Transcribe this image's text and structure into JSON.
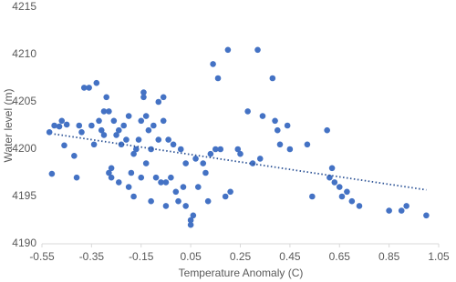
{
  "chart_data": {
    "type": "scatter",
    "x_label": "Temperature Anomaly (C)",
    "y_label": "Water level (m)",
    "xlim": [
      -0.55,
      1.05
    ],
    "xticks": [
      -0.55,
      -0.35,
      -0.15,
      0.05,
      0.25,
      0.45,
      0.65,
      0.85,
      1.05
    ],
    "ylim": [
      4190,
      4215
    ],
    "yticks": [
      4190,
      4195,
      4200,
      4205,
      4210,
      4215
    ],
    "grid": false,
    "series": [
      {
        "color": "#4472c4",
        "x": [
          -0.52,
          -0.51,
          -0.5,
          -0.48,
          -0.47,
          -0.46,
          -0.45,
          -0.42,
          -0.41,
          -0.4,
          -0.39,
          -0.38,
          -0.36,
          -0.35,
          -0.34,
          -0.33,
          -0.32,
          -0.31,
          -0.3,
          -0.3,
          -0.29,
          -0.28,
          -0.28,
          -0.27,
          -0.27,
          -0.26,
          -0.25,
          -0.24,
          -0.24,
          -0.23,
          -0.22,
          -0.21,
          -0.2,
          -0.2,
          -0.19,
          -0.18,
          -0.18,
          -0.17,
          -0.16,
          -0.15,
          -0.15,
          -0.14,
          -0.14,
          -0.13,
          -0.13,
          -0.12,
          -0.11,
          -0.11,
          -0.1,
          -0.09,
          -0.08,
          -0.08,
          -0.07,
          -0.06,
          -0.06,
          -0.05,
          -0.05,
          -0.04,
          -0.03,
          -0.02,
          -0.01,
          0.0,
          0.01,
          0.02,
          0.03,
          0.03,
          0.05,
          0.05,
          0.06,
          0.07,
          0.08,
          0.1,
          0.11,
          0.12,
          0.13,
          0.14,
          0.15,
          0.16,
          0.17,
          0.19,
          0.2,
          0.21,
          0.24,
          0.25,
          0.28,
          0.3,
          0.32,
          0.33,
          0.34,
          0.38,
          0.39,
          0.4,
          0.41,
          0.44,
          0.45,
          0.52,
          0.54,
          0.6,
          0.61,
          0.62,
          0.63,
          0.65,
          0.66,
          0.68,
          0.7,
          0.73,
          0.85,
          0.9,
          0.92,
          1.0
        ],
        "values": [
          4201.8,
          4197.4,
          4202.5,
          4202.4,
          4203.0,
          4200.4,
          4202.6,
          4199.3,
          4197.0,
          4202.5,
          4201.8,
          4206.5,
          4206.5,
          4202.5,
          4200.5,
          4207.0,
          4203.0,
          4202.0,
          4201.5,
          4204.0,
          4205.5,
          4204.0,
          4197.5,
          4198.0,
          4197.0,
          4203.0,
          4201.5,
          4202.0,
          4196.5,
          4200.5,
          4202.5,
          4201.0,
          4203.5,
          4196.0,
          4197.5,
          4199.5,
          4195.0,
          4200.0,
          4201.0,
          4203.0,
          4197.0,
          4205.5,
          4206.0,
          4203.5,
          4198.5,
          4202.0,
          4200.0,
          4194.5,
          4202.5,
          4197.0,
          4205.0,
          4201.0,
          4196.5,
          4205.5,
          4203.0,
          4196.5,
          4194.0,
          4201.0,
          4197.0,
          4200.5,
          4195.5,
          4194.5,
          4200.0,
          4196.0,
          4198.5,
          4194.0,
          4192.5,
          4192.0,
          4193.0,
          4199.0,
          4196.0,
          4198.5,
          4197.5,
          4194.5,
          4199.5,
          4209.0,
          4200.0,
          4207.5,
          4200.0,
          4195.0,
          4210.5,
          4195.5,
          4200.0,
          4199.5,
          4204.0,
          4198.5,
          4210.5,
          4199.0,
          4203.5,
          4207.5,
          4203.0,
          4202.0,
          4200.5,
          4202.5,
          4200.0,
          4200.5,
          4195.0,
          4202.0,
          4197.0,
          4198.0,
          4196.5,
          4196.0,
          4195.0,
          4195.5,
          4194.5,
          4194.0,
          4193.5,
          4193.5,
          4194.0,
          4193.0
        ]
      }
    ],
    "trendline": {
      "color": "#2f5597",
      "x": [
        -0.5,
        1.0
      ],
      "values": [
        4201.6,
        4195.7
      ]
    }
  }
}
